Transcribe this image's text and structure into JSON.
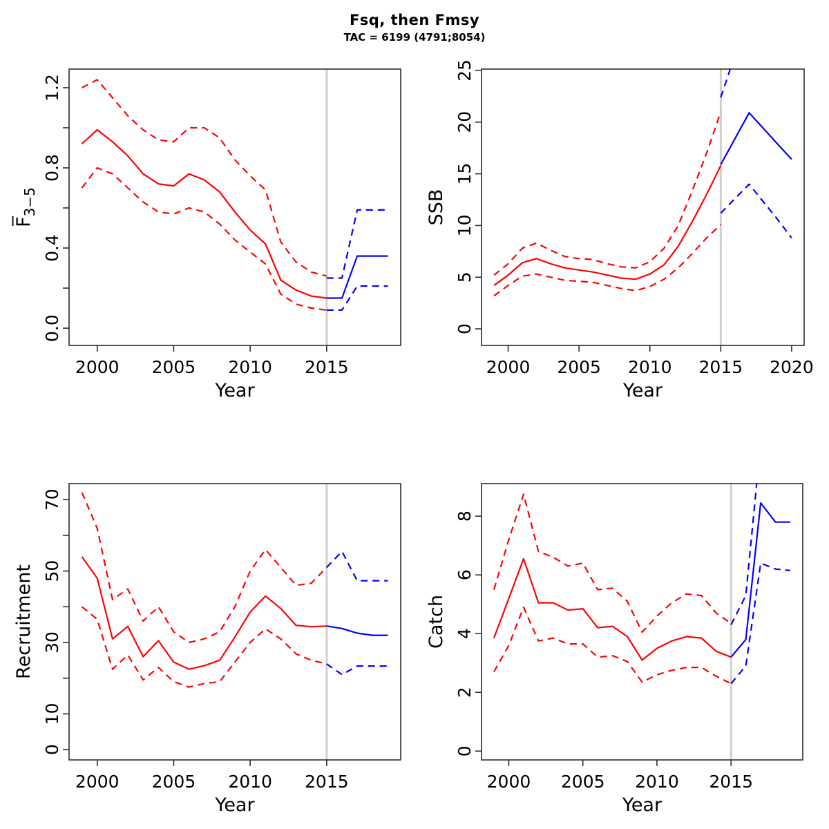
{
  "title": "Fsq, then Fmsy",
  "subtitle": "TAC = 6199 (4791;8054)",
  "colors": {
    "history": "#FF0000",
    "forecast": "#0000FF",
    "divider": "#CFCFCF",
    "axis": "#2B2B2B",
    "text": "#000000"
  },
  "chart_data": [
    {
      "type": "line",
      "id": "fbar",
      "ylabel": "F̅",
      "ylabel_sub": "3−5",
      "xlabel": "Year",
      "xlim": [
        1998.16,
        2019.84
      ],
      "ylim": [
        -0.086,
        1.293
      ],
      "divider_year": 2015,
      "grid": false,
      "xticks": [
        {
          "v": 2000,
          "t": "2000"
        },
        {
          "v": 2005,
          "t": "2005"
        },
        {
          "v": 2010,
          "t": "2010"
        },
        {
          "v": 2015,
          "t": "2015"
        }
      ],
      "yticks": [
        {
          "v": 0,
          "t": "0.0"
        },
        {
          "v": 0.2,
          "t": ""
        },
        {
          "v": 0.4,
          "t": "0.4"
        },
        {
          "v": 0.6,
          "t": ""
        },
        {
          "v": 0.8,
          "t": "0.8"
        },
        {
          "v": 1.0,
          "t": ""
        },
        {
          "v": 1.2,
          "t": "1.2"
        }
      ],
      "series": [
        {
          "name": "median-history",
          "color": "history",
          "dash": false,
          "x": [
            1999,
            2000,
            2001,
            2002,
            2003,
            2004,
            2005,
            2006,
            2007,
            2008,
            2009,
            2010,
            2011,
            2012,
            2013,
            2014,
            2015
          ],
          "y": [
            0.92,
            0.99,
            0.93,
            0.86,
            0.77,
            0.72,
            0.71,
            0.77,
            0.74,
            0.68,
            0.58,
            0.49,
            0.42,
            0.24,
            0.19,
            0.16,
            0.15
          ]
        },
        {
          "name": "upper-ci-history",
          "color": "history",
          "dash": true,
          "x": [
            1999,
            2000,
            2001,
            2002,
            2003,
            2004,
            2005,
            2006,
            2007,
            2008,
            2009,
            2010,
            2011,
            2012,
            2013,
            2014,
            2015
          ],
          "y": [
            1.2,
            1.24,
            1.15,
            1.06,
            0.99,
            0.94,
            0.93,
            1.0,
            1.0,
            0.95,
            0.84,
            0.76,
            0.69,
            0.43,
            0.33,
            0.28,
            0.26
          ]
        },
        {
          "name": "lower-ci-history",
          "color": "history",
          "dash": true,
          "x": [
            1999,
            2000,
            2001,
            2002,
            2003,
            2004,
            2005,
            2006,
            2007,
            2008,
            2009,
            2010,
            2011,
            2012,
            2013,
            2014,
            2015
          ],
          "y": [
            0.7,
            0.8,
            0.77,
            0.7,
            0.63,
            0.58,
            0.57,
            0.6,
            0.58,
            0.52,
            0.44,
            0.38,
            0.32,
            0.17,
            0.12,
            0.1,
            0.09
          ]
        },
        {
          "name": "median-forecast",
          "color": "forecast",
          "dash": false,
          "x": [
            2015,
            2016,
            2017,
            2018,
            2019
          ],
          "y": [
            0.15,
            0.15,
            0.36,
            0.36,
            0.36
          ]
        },
        {
          "name": "upper-ci-forecast",
          "color": "forecast",
          "dash": true,
          "x": [
            2015,
            2016,
            2017,
            2018,
            2019
          ],
          "y": [
            0.25,
            0.25,
            0.59,
            0.59,
            0.59
          ]
        },
        {
          "name": "lower-ci-forecast",
          "color": "forecast",
          "dash": true,
          "x": [
            2015,
            2016,
            2017,
            2018,
            2019
          ],
          "y": [
            0.09,
            0.09,
            0.21,
            0.21,
            0.21
          ]
        }
      ]
    },
    {
      "type": "line",
      "id": "ssb",
      "ylabel": "SSB",
      "xlabel": "Year",
      "xlim": [
        1998.12,
        2020.88
      ],
      "ylim": [
        -1.6,
        25.13
      ],
      "divider_year": 2015,
      "grid": false,
      "xticks": [
        {
          "v": 2000,
          "t": "2000"
        },
        {
          "v": 2005,
          "t": "2005"
        },
        {
          "v": 2010,
          "t": "2010"
        },
        {
          "v": 2015,
          "t": "2015"
        },
        {
          "v": 2020,
          "t": "2020"
        }
      ],
      "yticks": [
        {
          "v": 0,
          "t": "0"
        },
        {
          "v": 5,
          "t": "5"
        },
        {
          "v": 10,
          "t": "10"
        },
        {
          "v": 15,
          "t": "15"
        },
        {
          "v": 20,
          "t": "20"
        },
        {
          "v": 25,
          "t": "25"
        }
      ],
      "series": [
        {
          "name": "median-history",
          "color": "history",
          "dash": false,
          "x": [
            1999,
            2000,
            2001,
            2002,
            2003,
            2004,
            2005,
            2006,
            2007,
            2008,
            2009,
            2010,
            2011,
            2012,
            2013,
            2014,
            2015
          ],
          "y": [
            4.2,
            5.2,
            6.4,
            6.8,
            6.3,
            5.9,
            5.7,
            5.5,
            5.2,
            4.9,
            4.8,
            5.3,
            6.2,
            8.0,
            10.4,
            13.0,
            15.8
          ]
        },
        {
          "name": "upper-ci-history",
          "color": "history",
          "dash": true,
          "x": [
            1999,
            2000,
            2001,
            2002,
            2003,
            2004,
            2005,
            2006,
            2007,
            2008,
            2009,
            2010,
            2011,
            2012,
            2013,
            2014,
            2015
          ],
          "y": [
            5.2,
            6.3,
            7.8,
            8.3,
            7.6,
            7.0,
            6.8,
            6.7,
            6.3,
            6.0,
            5.9,
            6.5,
            7.8,
            10.0,
            13.4,
            17.0,
            21.0
          ]
        },
        {
          "name": "lower-ci-history",
          "color": "history",
          "dash": true,
          "x": [
            1999,
            2000,
            2001,
            2002,
            2003,
            2004,
            2005,
            2006,
            2007,
            2008,
            2009,
            2010,
            2011,
            2012,
            2013,
            2014,
            2015
          ],
          "y": [
            3.2,
            4.2,
            5.1,
            5.3,
            5.0,
            4.7,
            4.6,
            4.5,
            4.2,
            3.9,
            3.7,
            4.1,
            4.8,
            5.9,
            7.3,
            8.8,
            10.1
          ]
        },
        {
          "name": "median-forecast",
          "color": "forecast",
          "dash": false,
          "x": [
            2015,
            2016,
            2017,
            2018,
            2019,
            2020
          ],
          "y": [
            15.9,
            18.4,
            20.9,
            19.4,
            17.9,
            16.4
          ]
        },
        {
          "name": "upper-ci-forecast",
          "color": "forecast",
          "dash": true,
          "x": [
            2015,
            2016
          ],
          "y": [
            22.4,
            26.5
          ]
        },
        {
          "name": "lower-ci-forecast",
          "color": "forecast",
          "dash": true,
          "x": [
            2015,
            2016,
            2017,
            2018,
            2019,
            2020
          ],
          "y": [
            11.2,
            12.6,
            14.0,
            12.3,
            10.6,
            8.8
          ]
        }
      ]
    },
    {
      "type": "line",
      "id": "recruitment",
      "ylabel": "Recruitment",
      "xlabel": "Year",
      "xlim": [
        1998.16,
        2019.84
      ],
      "ylim": [
        -2.9,
        74.5
      ],
      "divider_year": 2015,
      "grid": false,
      "xticks": [
        {
          "v": 2000,
          "t": "2000"
        },
        {
          "v": 2005,
          "t": "2005"
        },
        {
          "v": 2010,
          "t": "2010"
        },
        {
          "v": 2015,
          "t": "2015"
        }
      ],
      "yticks": [
        {
          "v": 0,
          "t": "0"
        },
        {
          "v": 10,
          "t": "10"
        },
        {
          "v": 20,
          "t": ""
        },
        {
          "v": 30,
          "t": "30"
        },
        {
          "v": 40,
          "t": ""
        },
        {
          "v": 50,
          "t": "50"
        },
        {
          "v": 60,
          "t": ""
        },
        {
          "v": 70,
          "t": "70"
        }
      ],
      "series": [
        {
          "name": "median-history",
          "color": "history",
          "dash": false,
          "x": [
            1999,
            2000,
            2001,
            2002,
            2003,
            2004,
            2005,
            2006,
            2007,
            2008,
            2009,
            2010,
            2011,
            2012,
            2013,
            2014,
            2015
          ],
          "y": [
            54,
            48,
            31,
            34.5,
            26,
            30.5,
            24.5,
            22.5,
            23.5,
            25,
            31.5,
            38.5,
            43,
            39.5,
            34.8,
            34.4,
            34.6
          ]
        },
        {
          "name": "upper-ci-history",
          "color": "history",
          "dash": true,
          "x": [
            1999,
            2000,
            2001,
            2002,
            2003,
            2004,
            2005,
            2006,
            2007,
            2008,
            2009,
            2010,
            2011,
            2012,
            2013,
            2014,
            2015
          ],
          "y": [
            72,
            62,
            42,
            45,
            36,
            40,
            33,
            30,
            31,
            33,
            40,
            50,
            56,
            51,
            46,
            46.6,
            51
          ]
        },
        {
          "name": "lower-ci-history",
          "color": "history",
          "dash": true,
          "x": [
            1999,
            2000,
            2001,
            2002,
            2003,
            2004,
            2005,
            2006,
            2007,
            2008,
            2009,
            2010,
            2011,
            2012,
            2013,
            2014,
            2015
          ],
          "y": [
            40,
            36.5,
            22.5,
            26.5,
            19.5,
            23,
            19,
            17.5,
            18.5,
            19,
            24.5,
            30,
            33.8,
            31,
            26.8,
            25,
            24
          ]
        },
        {
          "name": "median-forecast",
          "color": "forecast",
          "dash": false,
          "x": [
            2015,
            2016,
            2017,
            2018,
            2019
          ],
          "y": [
            34.6,
            33.9,
            32.6,
            32,
            32
          ]
        },
        {
          "name": "upper-ci-forecast",
          "color": "forecast",
          "dash": true,
          "x": [
            2015,
            2016,
            2017,
            2018,
            2019
          ],
          "y": [
            51,
            55.5,
            47.3,
            47.3,
            47.3
          ]
        },
        {
          "name": "lower-ci-forecast",
          "color": "forecast",
          "dash": true,
          "x": [
            2015,
            2016,
            2017,
            2018,
            2019
          ],
          "y": [
            24,
            21,
            23.4,
            23.4,
            23.4
          ]
        }
      ]
    },
    {
      "type": "line",
      "id": "catch",
      "ylabel": "Catch",
      "xlabel": "Year",
      "xlim": [
        1998.16,
        2019.84
      ],
      "ylim": [
        -0.3,
        9.11
      ],
      "divider_year": 2015,
      "grid": false,
      "xticks": [
        {
          "v": 2000,
          "t": "2000"
        },
        {
          "v": 2005,
          "t": "2005"
        },
        {
          "v": 2010,
          "t": "2010"
        },
        {
          "v": 2015,
          "t": "2015"
        }
      ],
      "yticks": [
        {
          "v": 0,
          "t": "0"
        },
        {
          "v": 2,
          "t": "2"
        },
        {
          "v": 4,
          "t": "4"
        },
        {
          "v": 6,
          "t": "6"
        },
        {
          "v": 8,
          "t": "8"
        }
      ],
      "series": [
        {
          "name": "median-history",
          "color": "history",
          "dash": false,
          "x": [
            1999,
            2000,
            2001,
            2002,
            2003,
            2004,
            2005,
            2006,
            2007,
            2008,
            2009,
            2010,
            2011,
            2012,
            2013,
            2014,
            2015
          ],
          "y": [
            3.85,
            5.2,
            6.55,
            5.05,
            5.05,
            4.8,
            4.85,
            4.2,
            4.25,
            3.9,
            3.1,
            3.5,
            3.75,
            3.9,
            3.85,
            3.4,
            3.2
          ]
        },
        {
          "name": "upper-ci-history",
          "color": "history",
          "dash": true,
          "x": [
            1999,
            2000,
            2001,
            2002,
            2003,
            2004,
            2005,
            2006,
            2007,
            2008,
            2009,
            2010,
            2011,
            2012,
            2013,
            2014,
            2015
          ],
          "y": [
            5.5,
            7.2,
            8.75,
            6.8,
            6.6,
            6.3,
            6.4,
            5.5,
            5.55,
            5.1,
            4.05,
            4.6,
            5.05,
            5.35,
            5.3,
            4.7,
            4.35
          ]
        },
        {
          "name": "lower-ci-history",
          "color": "history",
          "dash": true,
          "x": [
            1999,
            2000,
            2001,
            2002,
            2003,
            2004,
            2005,
            2006,
            2007,
            2008,
            2009,
            2010,
            2011,
            2012,
            2013,
            2014,
            2015
          ],
          "y": [
            2.7,
            3.6,
            4.9,
            3.75,
            3.85,
            3.65,
            3.65,
            3.2,
            3.25,
            3.05,
            2.35,
            2.6,
            2.75,
            2.85,
            2.85,
            2.55,
            2.3
          ]
        },
        {
          "name": "median-forecast",
          "color": "forecast",
          "dash": false,
          "x": [
            2015,
            2016,
            2017,
            2018,
            2019
          ],
          "y": [
            3.2,
            3.8,
            8.45,
            7.8,
            7.8
          ]
        },
        {
          "name": "upper-ci-forecast",
          "color": "forecast",
          "dash": true,
          "x": [
            2015,
            2016,
            2017,
            2018,
            2019
          ],
          "y": [
            4.3,
            5.3,
            10.5,
            10.5,
            10.5
          ]
        },
        {
          "name": "lower-ci-forecast",
          "color": "forecast",
          "dash": true,
          "x": [
            2015,
            2016,
            2017,
            2018,
            2019
          ],
          "y": [
            2.3,
            2.9,
            6.4,
            6.2,
            6.15
          ]
        }
      ]
    }
  ]
}
